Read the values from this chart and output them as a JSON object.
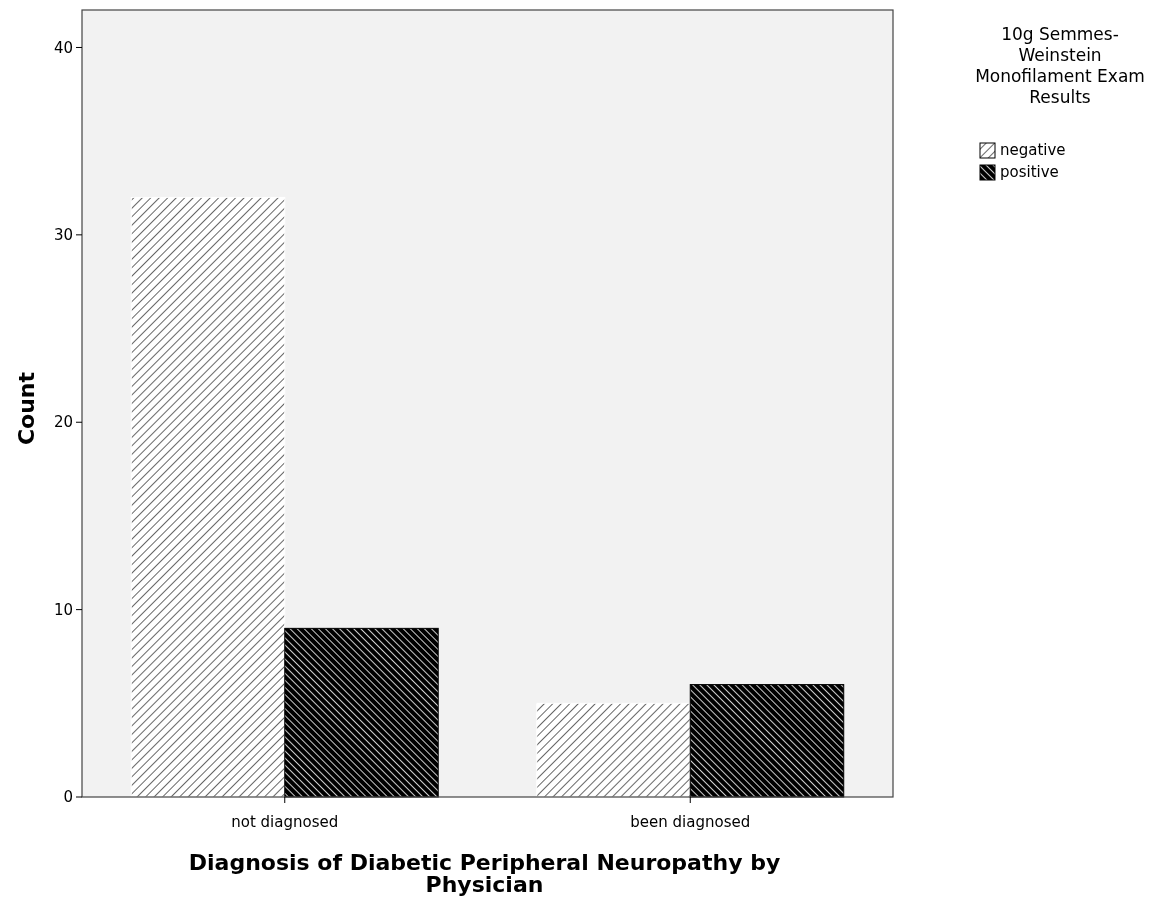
{
  "chart_data": {
    "type": "bar",
    "xlabel": "Diagnosis of Diabetic Peripheral Neuropathy by Physician",
    "ylabel": "Count",
    "legend_title": "10g Semmes-Weinstein Monofilament Exam Results",
    "categories": [
      "not diagnosed",
      "been diagnosed"
    ],
    "series": [
      {
        "name": "negative",
        "color": "#ffffff",
        "values": [
          32,
          5
        ]
      },
      {
        "name": "positive",
        "color": "#000000",
        "values": [
          9,
          6
        ]
      }
    ],
    "ylim": [
      0,
      42
    ],
    "yticks": [
      0,
      10,
      20,
      30,
      40
    ],
    "grid": false,
    "legend": "top right"
  }
}
